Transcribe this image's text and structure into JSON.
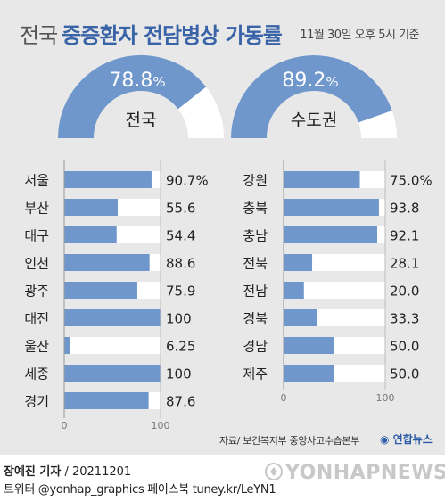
{
  "title": {
    "part1": "전국",
    "part2": "중증환자 전담병상 가동률",
    "date": "11월 30일 오후 5시 기준"
  },
  "gauges": [
    {
      "label": "전국",
      "value": 78.8,
      "display": "78.8",
      "unit": "%"
    },
    {
      "label": "수도권",
      "value": 89.2,
      "display": "89.2",
      "unit": "%"
    }
  ],
  "chart_data": [
    {
      "type": "bar",
      "orientation": "horizontal",
      "categories": [
        "서울",
        "부산",
        "대구",
        "인천",
        "광주",
        "대전",
        "울산",
        "세종",
        "경기"
      ],
      "values": [
        90.7,
        55.6,
        54.4,
        88.6,
        75.9,
        100,
        6.25,
        100,
        87.6
      ],
      "labels": [
        "90.7%",
        "55.6",
        "54.4",
        "88.6",
        "75.9",
        "100",
        "6.25",
        "100",
        "87.6"
      ],
      "xlim": [
        0,
        100
      ],
      "xticks": [
        "0",
        "100"
      ]
    },
    {
      "type": "bar",
      "orientation": "horizontal",
      "categories": [
        "강원",
        "충북",
        "충남",
        "전북",
        "전남",
        "경북",
        "경남",
        "제주"
      ],
      "values": [
        75.0,
        93.8,
        92.1,
        28.1,
        20.0,
        33.3,
        50.0,
        50.0
      ],
      "labels": [
        "75.0%",
        "93.8",
        "92.1",
        "28.1",
        "20.0",
        "33.3",
        "50.0",
        "50.0"
      ],
      "xlim": [
        0,
        100
      ],
      "xticks": [
        "0",
        "100"
      ]
    }
  ],
  "colors": {
    "bar": "#6f97cc",
    "gauge_fill": "#6f97cc",
    "track": "#ffffff",
    "panel": "#e8e8e8",
    "title_accent": "#3a64a8"
  },
  "source": "자료/ 보건복지부 중앙사고수습본부",
  "brand": "연합뉴스",
  "footer": {
    "author": "장예진 기자",
    "code": "/ 20211201",
    "social": "트위터 @yonhap_graphics  페이스북 tuney.kr/LeYN1",
    "watermark": "YONHAPNEWS"
  }
}
